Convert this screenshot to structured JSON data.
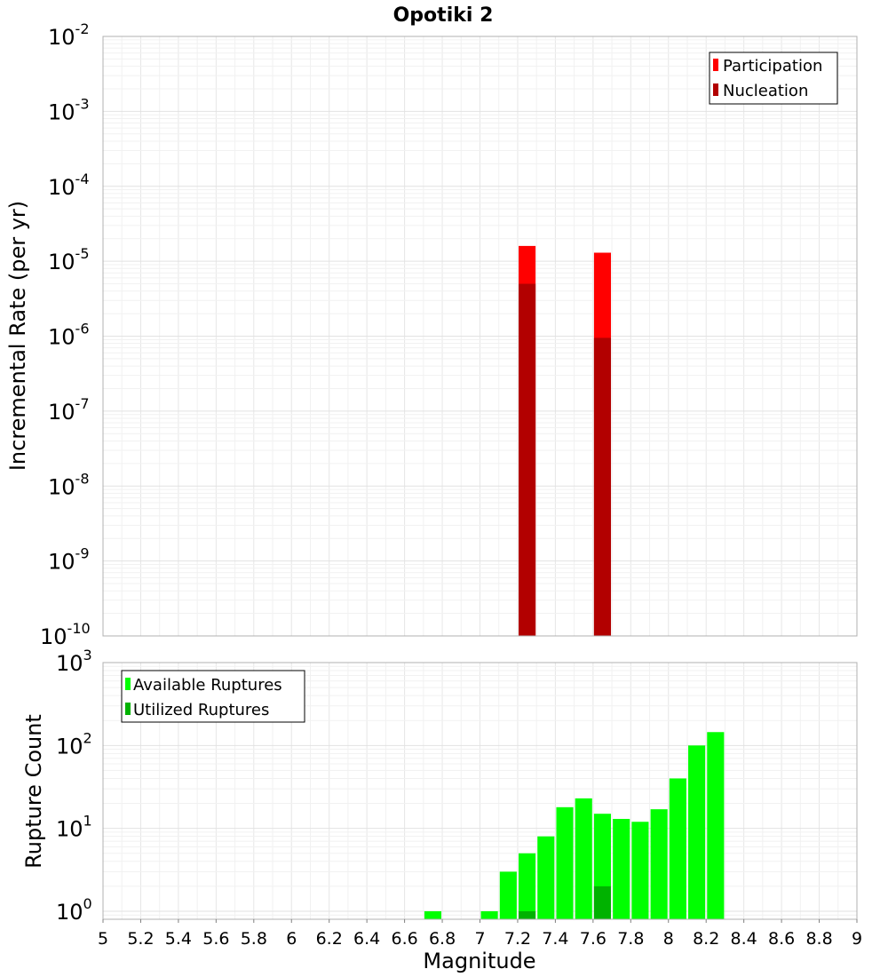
{
  "title": "Opotiki 2",
  "chart_data": [
    {
      "type": "bar",
      "ylabel": "Incremental Rate (per yr)",
      "yscale": "log",
      "ylim": [
        1e-10,
        0.01
      ],
      "xlim": [
        5,
        9
      ],
      "ytick_labels": [
        {
          "base": "10",
          "exp": "-10"
        },
        {
          "base": "10",
          "exp": "-9"
        },
        {
          "base": "10",
          "exp": "-8"
        },
        {
          "base": "10",
          "exp": "-7"
        },
        {
          "base": "10",
          "exp": "-6"
        },
        {
          "base": "10",
          "exp": "-5"
        },
        {
          "base": "10",
          "exp": "-4"
        },
        {
          "base": "10",
          "exp": "-3"
        },
        {
          "base": "10",
          "exp": "-2"
        }
      ],
      "legend": {
        "position": "top-right",
        "entries": [
          {
            "label": "Participation",
            "color": "#ff0000"
          },
          {
            "label": "Nucleation",
            "color": "#b20000"
          }
        ]
      },
      "series": [
        {
          "name": "Participation",
          "color": "#ff0000",
          "x": [
            7.25,
            7.65
          ],
          "values": [
            1.6e-05,
            1.3e-05
          ]
        },
        {
          "name": "Nucleation",
          "color": "#b20000",
          "x": [
            7.25,
            7.65
          ],
          "values": [
            5e-06,
            9.5e-07
          ]
        }
      ],
      "bar_width": 0.09,
      "grid": true
    },
    {
      "type": "bar",
      "ylabel": "Rupture Count",
      "xlabel": "Magnitude",
      "yscale": "log",
      "ylim": [
        0.8,
        1000
      ],
      "xlim": [
        5,
        9
      ],
      "ytick_labels": [
        {
          "base": "10",
          "exp": "0"
        },
        {
          "base": "10",
          "exp": "1"
        },
        {
          "base": "10",
          "exp": "2"
        },
        {
          "base": "10",
          "exp": "3"
        }
      ],
      "xtick_labels": [
        "5",
        "5.2",
        "5.4",
        "5.6",
        "5.8",
        "6",
        "6.2",
        "6.4",
        "6.6",
        "6.8",
        "7",
        "7.2",
        "7.4",
        "7.6",
        "7.8",
        "8",
        "8.2",
        "8.4",
        "8.6",
        "8.8",
        "9"
      ],
      "legend": {
        "position": "top-left",
        "entries": [
          {
            "label": "Available Ruptures",
            "color": "#00ff00"
          },
          {
            "label": "Utilized Ruptures",
            "color": "#00b200"
          }
        ]
      },
      "series": [
        {
          "name": "Available Ruptures",
          "color": "#00ff00",
          "x": [
            6.75,
            7.05,
            7.15,
            7.25,
            7.35,
            7.45,
            7.55,
            7.65,
            7.75,
            7.85,
            7.95,
            8.05,
            8.15,
            8.25
          ],
          "values": [
            1,
            1,
            3,
            5,
            8,
            18,
            23,
            15,
            13,
            12,
            17,
            40,
            100,
            145
          ]
        },
        {
          "name": "Utilized Ruptures",
          "color": "#00b200",
          "x": [
            7.25,
            7.65
          ],
          "values": [
            1,
            2
          ]
        }
      ],
      "bar_width": 0.09,
      "grid": true
    }
  ]
}
